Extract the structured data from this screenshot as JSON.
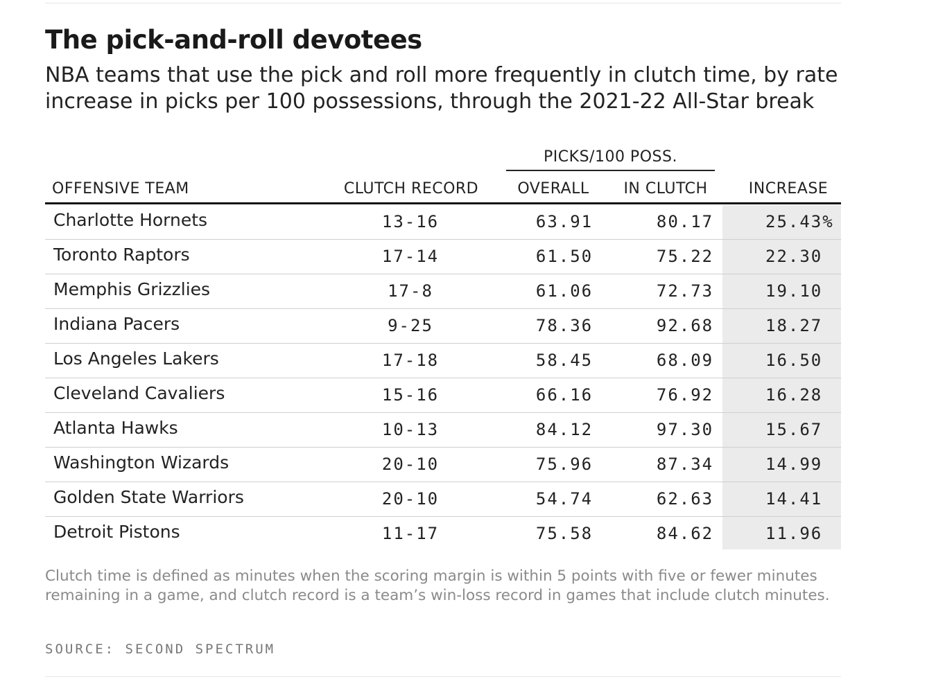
{
  "header": {
    "title": "The pick-and-roll devotees",
    "subtitle": "NBA teams that use the pick and roll more frequently in clutch time, by rate increase in picks per 100 possessions, through the 2021-22 All-Star break"
  },
  "table": {
    "group_header": "PICKS/100 POSS.",
    "columns": [
      "OFFENSIVE TEAM",
      "CLUTCH RECORD",
      "OVERALL",
      "IN CLUTCH",
      "INCREASE"
    ],
    "rows": [
      [
        "Charlotte Hornets",
        "13-16",
        "63.91",
        "80.17",
        "25.43%"
      ],
      [
        "Toronto Raptors",
        "17-14",
        "61.50",
        "75.22",
        "22.30"
      ],
      [
        "Memphis Grizzlies",
        "17-8",
        "61.06",
        "72.73",
        "19.10"
      ],
      [
        "Indiana Pacers",
        "9-25",
        "78.36",
        "92.68",
        "18.27"
      ],
      [
        "Los Angeles Lakers",
        "17-18",
        "58.45",
        "68.09",
        "16.50"
      ],
      [
        "Cleveland Cavaliers",
        "15-16",
        "66.16",
        "76.92",
        "16.28"
      ],
      [
        "Atlanta Hawks",
        "10-13",
        "84.12",
        "97.30",
        "15.67"
      ],
      [
        "Washington Wizards",
        "20-10",
        "75.96",
        "87.34",
        "14.99"
      ],
      [
        "Golden State Warriors",
        "20-10",
        "54.74",
        "62.63",
        "14.41"
      ],
      [
        "Detroit Pistons",
        "11-17",
        "75.58",
        "84.62",
        "11.96"
      ]
    ]
  },
  "footnote": "Clutch time is defined as minutes when the scoring margin is within 5 points with five or fewer minutes remaining in a game, and clutch record is a team’s win-loss record in games that include clutch minutes.",
  "source": "SOURCE: SECOND SPECTRUM"
}
